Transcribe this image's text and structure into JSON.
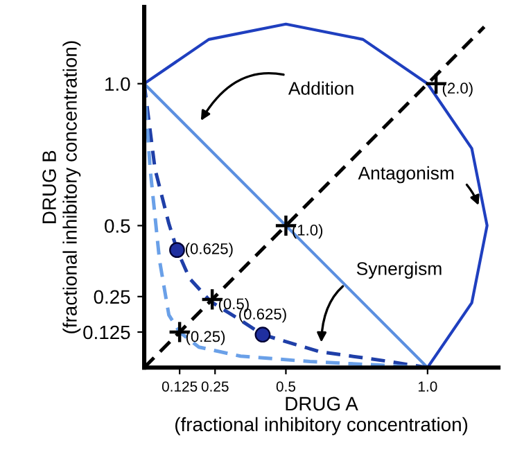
{
  "chart_data": {
    "type": "line",
    "xlabel": "DRUG A\n(fractional inhibitory concentration)",
    "ylabel": "DRUG B\n(fractional inhibitory concentration)",
    "xlim": [
      0,
      1.25
    ],
    "ylim": [
      0,
      1.27
    ],
    "xticks": [
      0.125,
      0.25,
      0.5,
      {
        "value": 1,
        "label": "1.0"
      }
    ],
    "yticks": [
      0.125,
      0.25,
      0.5,
      {
        "value": 1,
        "label": "1.0"
      }
    ],
    "grid": false,
    "legend": false,
    "series": [
      {
        "color": "#1f3fbf",
        "line_style": "solid",
        "marker": "none",
        "x": [
          0,
          0.228,
          0.5,
          0.772,
          1.0,
          1.156,
          1.21,
          1.156,
          1.0
        ],
        "values": [
          1.0,
          1.156,
          1.21,
          1.156,
          1.0,
          0.772,
          0.5,
          0.228,
          0
        ]
      },
      {
        "color": "#5b8fe0",
        "line_style": "solid",
        "marker": "none",
        "x": [
          0,
          1
        ],
        "values": [
          1,
          0
        ]
      },
      {
        "color": "#1f3fa8",
        "line_style": "dashed",
        "marker": "none",
        "x": [
          0,
          0.038,
          0.087,
          0.116,
          0.16,
          0.234,
          0.324,
          0.418,
          0.618,
          0.846,
          1.0
        ],
        "values": [
          1.0,
          0.7,
          0.507,
          0.414,
          0.314,
          0.233,
          0.177,
          0.116,
          0.056,
          0.024,
          0
        ]
      },
      {
        "color": "#6aa0e8",
        "line_style": "dashed",
        "marker": "none",
        "x": [
          0,
          0.021,
          0.054,
          0.087,
          0.125,
          0.193,
          0.34,
          0.585,
          1.0
        ],
        "values": [
          1.0,
          0.7,
          0.378,
          0.185,
          0.125,
          0.072,
          0.04,
          0.021,
          0
        ]
      },
      {
        "color": "#000000",
        "line_style": "dashed",
        "marker": "none",
        "x": [
          0,
          1.2
        ],
        "values": [
          0,
          1.2
        ]
      },
      {
        "type": "scatter",
        "color": "#000000",
        "marker": "cross",
        "x": [
          0.125,
          0.24,
          0.5,
          1.03
        ],
        "values": [
          0.125,
          0.24,
          0.5,
          1.0
        ]
      },
      {
        "type": "scatter",
        "color": "#1f2f9f",
        "marker": "circle",
        "x": [
          0.116,
          0.418
        ],
        "values": [
          0.414,
          0.116
        ]
      }
    ],
    "annotations": [
      {
        "text": "(2.0)",
        "x": 1.03,
        "y": 1.0
      },
      {
        "text": "(1.0)",
        "x": 0.5,
        "y": 0.5
      },
      {
        "text": "(0.5)",
        "x": 0.24,
        "y": 0.24
      },
      {
        "text": "(0.25)",
        "x": 0.125,
        "y": 0.125
      },
      {
        "text": "(0.625)",
        "x": 0.116,
        "y": 0.414
      },
      {
        "text": "(0.625)",
        "x": 0.418,
        "y": 0.116
      },
      "Addition",
      "Antagonism",
      "Synergism"
    ]
  }
}
